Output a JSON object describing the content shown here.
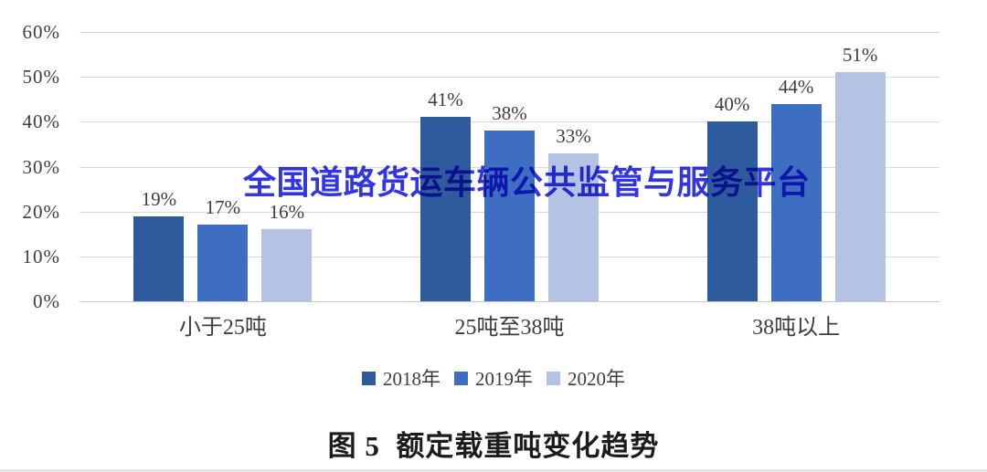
{
  "figure": {
    "caption": "图 5  额定载重吨变化趋势",
    "watermark": {
      "text": "全国道路货运车辆公共监管与服务平台",
      "color": "#3135E2"
    }
  },
  "chart_data": {
    "type": "bar",
    "title": "图 5 额定载重吨变化趋势",
    "categories": [
      "小于25吨",
      "25吨至38吨",
      "38吨以上"
    ],
    "series": [
      {
        "name": "2018年",
        "color": "#2E5B9E",
        "values": [
          19,
          41,
          40
        ]
      },
      {
        "name": "2019年",
        "color": "#3D6EC1",
        "values": [
          17,
          38,
          44
        ]
      },
      {
        "name": "2020年",
        "color": "#B4C2E3",
        "values": [
          16,
          33,
          51
        ]
      }
    ],
    "value_label_suffix": "%",
    "xlabel": "",
    "ylabel": "",
    "ylim": [
      0,
      60
    ],
    "yticks": [
      0,
      10,
      20,
      30,
      40,
      50,
      60
    ],
    "ytick_suffix": "%",
    "grid": true,
    "legend_position": "bottom",
    "colors": {
      "gridline": "#d9d9d9",
      "axis_line": "#c7c7c7",
      "text": "#3d3d3d"
    }
  }
}
